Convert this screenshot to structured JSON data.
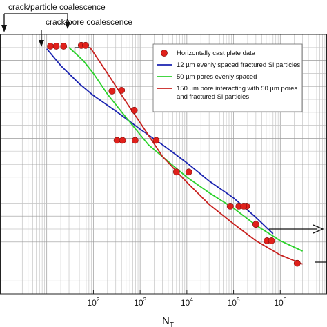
{
  "chart_data": {
    "type": "scatter",
    "xscale": "log",
    "xlim": [
      1,
      10000000
    ],
    "ylim": [
      0,
      1
    ],
    "grid": true,
    "legend_position": "top-right",
    "xlabel": {
      "main": "N",
      "sub": "T"
    },
    "ylabel": "",
    "x_ticks": [
      {
        "base": "10",
        "exp": "2",
        "value": 100
      },
      {
        "base": "10",
        "exp": "3",
        "value": 1000
      },
      {
        "base": "10",
        "exp": "4",
        "value": 10000
      },
      {
        "base": "10",
        "exp": "5",
        "value": 100000
      },
      {
        "base": "10",
        "exp": "6",
        "value": 1000000
      }
    ],
    "annotations": [
      {
        "text": "crack/particle coalescence",
        "x_from": 15,
        "x_to": 28
      },
      {
        "text": "crack/pore coalescence",
        "x_from": 40,
        "x_to": 85
      }
    ],
    "series": [
      {
        "name": "Horizontally cast plate data",
        "kind": "markers",
        "color": "#e0201b",
        "points": [
          {
            "x": 12,
            "y": 0.955
          },
          {
            "x": 16,
            "y": 0.955
          },
          {
            "x": 23,
            "y": 0.955
          },
          {
            "x": 55,
            "y": 0.958
          },
          {
            "x": 68,
            "y": 0.958
          },
          {
            "x": 250,
            "y": 0.782
          },
          {
            "x": 400,
            "y": 0.785
          },
          {
            "x": 750,
            "y": 0.708
          },
          {
            "x": 320,
            "y": 0.592
          },
          {
            "x": 420,
            "y": 0.592
          },
          {
            "x": 780,
            "y": 0.592
          },
          {
            "x": 2200,
            "y": 0.592
          },
          {
            "x": 6000,
            "y": 0.47
          },
          {
            "x": 11000,
            "y": 0.47
          },
          {
            "x": 85000,
            "y": 0.338
          },
          {
            "x": 130000,
            "y": 0.338
          },
          {
            "x": 190000,
            "y": 0.338
          },
          {
            "x": 165000,
            "y": 0.338
          },
          {
            "x": 300000,
            "y": 0.268
          },
          {
            "x": 520000,
            "y": 0.205
          },
          {
            "x": 650000,
            "y": 0.205
          },
          {
            "x": 2300000,
            "y": 0.118
          }
        ]
      },
      {
        "name": "12 µm evenly spaced fractured Si particles",
        "kind": "line",
        "color": "#1a23b0",
        "points": [
          {
            "x": 10,
            "y": 0.945
          },
          {
            "x": 20,
            "y": 0.88
          },
          {
            "x": 50,
            "y": 0.81
          },
          {
            "x": 100,
            "y": 0.765
          },
          {
            "x": 300,
            "y": 0.705
          },
          {
            "x": 1000,
            "y": 0.635
          },
          {
            "x": 3000,
            "y": 0.575
          },
          {
            "x": 10000,
            "y": 0.505
          },
          {
            "x": 30000,
            "y": 0.435
          },
          {
            "x": 100000,
            "y": 0.37
          },
          {
            "x": 300000,
            "y": 0.295
          },
          {
            "x": 700000,
            "y": 0.232
          }
        ]
      },
      {
        "name": "50 µm pores evenly spaced",
        "kind": "line",
        "color": "#2ad12a",
        "points": [
          {
            "x": 30,
            "y": 0.95
          },
          {
            "x": 60,
            "y": 0.9
          },
          {
            "x": 100,
            "y": 0.85
          },
          {
            "x": 200,
            "y": 0.77
          },
          {
            "x": 500,
            "y": 0.68
          },
          {
            "x": 1500,
            "y": 0.575
          },
          {
            "x": 4000,
            "y": 0.51
          },
          {
            "x": 10000,
            "y": 0.45
          },
          {
            "x": 30000,
            "y": 0.39
          },
          {
            "x": 100000,
            "y": 0.33
          },
          {
            "x": 300000,
            "y": 0.265
          },
          {
            "x": 1000000,
            "y": 0.205
          },
          {
            "x": 3000000,
            "y": 0.165
          }
        ]
      },
      {
        "name": "150 µm pore interacting with 50    µm pores and fractured Si particles",
        "legend_lines": [
          "150 µm pore interacting with 50    µm pores",
          "and fractured Si particles"
        ],
        "kind": "line",
        "color": "#c8201e",
        "points": [
          {
            "x": 85,
            "y": 0.95
          },
          {
            "x": 200,
            "y": 0.85
          },
          {
            "x": 500,
            "y": 0.74
          },
          {
            "x": 1000,
            "y": 0.66
          },
          {
            "x": 3000,
            "y": 0.53
          },
          {
            "x": 10000,
            "y": 0.43
          },
          {
            "x": 30000,
            "y": 0.345
          },
          {
            "x": 100000,
            "y": 0.27
          },
          {
            "x": 300000,
            "y": 0.205
          },
          {
            "x": 1000000,
            "y": 0.15
          },
          {
            "x": 3000000,
            "y": 0.115
          }
        ]
      }
    ]
  }
}
